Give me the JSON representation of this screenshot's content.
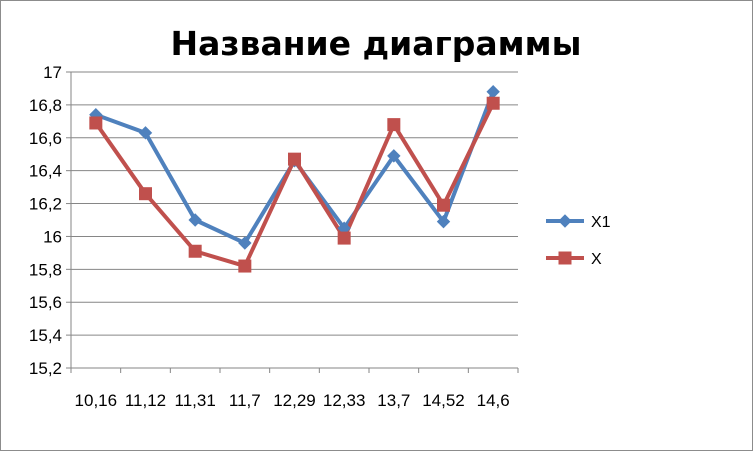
{
  "chart_data": {
    "type": "line",
    "title": "Название диаграммы",
    "xlabel": "",
    "ylabel": "",
    "categories": [
      "10,16",
      "11,12",
      "11,31",
      "11,7",
      "12,29",
      "12,33",
      "13,7",
      "14,52",
      "14,6"
    ],
    "y_ticks": [
      "15,2",
      "15,4",
      "15,6",
      "15,8",
      "16",
      "16,2",
      "16,4",
      "16,6",
      "16,8",
      "17"
    ],
    "ylim": [
      15.2,
      17
    ],
    "grid": "horizontal",
    "legend_position": "right",
    "series": [
      {
        "name": "X1",
        "values": [
          16.74,
          16.63,
          16.1,
          15.96,
          16.46,
          16.05,
          16.49,
          16.09,
          16.88
        ],
        "color": "#4f81bd",
        "marker": "diamond"
      },
      {
        "name": "X",
        "values": [
          16.69,
          16.26,
          15.91,
          15.82,
          16.47,
          15.99,
          16.68,
          16.19,
          16.81
        ],
        "color": "#c0504d",
        "marker": "square"
      }
    ]
  }
}
